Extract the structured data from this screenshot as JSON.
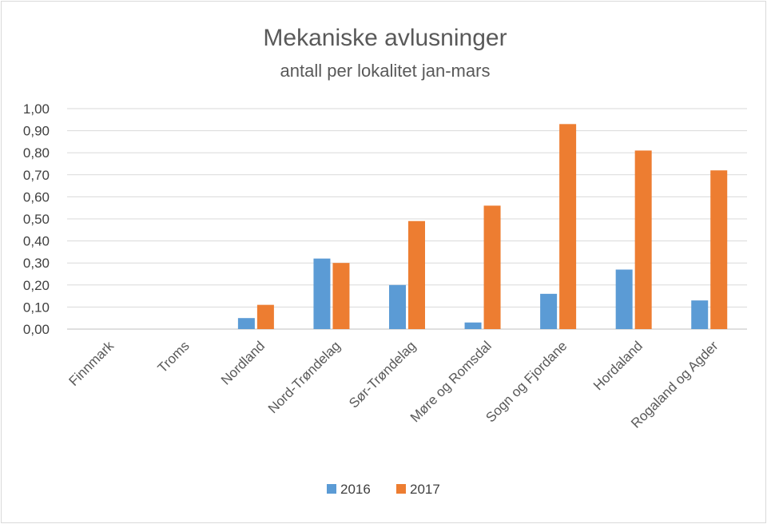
{
  "chart_data": {
    "type": "bar",
    "title": "Mekaniske avlusninger",
    "subtitle": "antall per lokalitet jan-mars",
    "xlabel": "",
    "ylabel": "",
    "ylim": [
      0,
      1.0
    ],
    "yticks": [
      "0,00",
      "0,10",
      "0,20",
      "0,30",
      "0,40",
      "0,50",
      "0,60",
      "0,70",
      "0,80",
      "0,90",
      "1,00"
    ],
    "grid": true,
    "legend_position": "bottom",
    "categories": [
      "Finnmark",
      "Troms",
      "Nordland",
      "Nord-Trøndelag",
      "Sør-Trøndelag",
      "Møre og Romsdal",
      "Sogn og Fjordane",
      "Hordaland",
      "Rogaland og Agder"
    ],
    "series": [
      {
        "name": "2016",
        "color": "#5b9bd5",
        "values": [
          0,
          0,
          0.05,
          0.32,
          0.2,
          0.03,
          0.16,
          0.27,
          0.13
        ]
      },
      {
        "name": "2017",
        "color": "#ed7d31",
        "values": [
          0,
          0,
          0.11,
          0.3,
          0.49,
          0.56,
          0.93,
          0.81,
          0.72
        ]
      }
    ]
  }
}
